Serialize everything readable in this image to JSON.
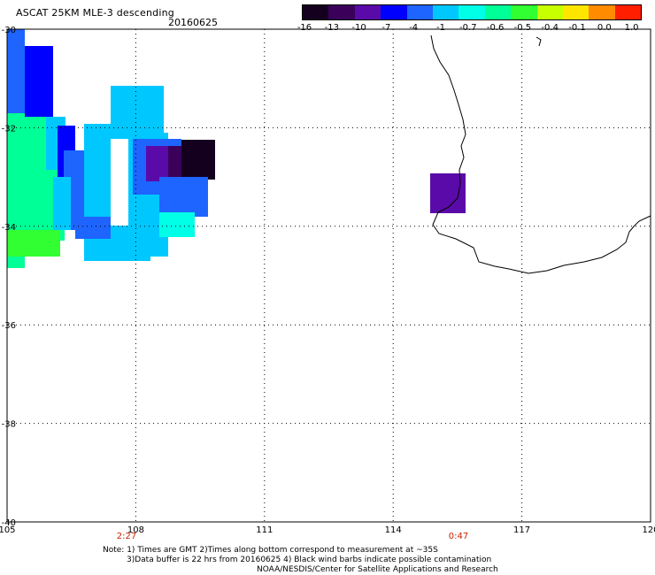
{
  "title": "ASCAT 25KM MLE-3 descending",
  "date": "20160625",
  "colorbar": {
    "labels": [
      "-16",
      "-13",
      "-10",
      "-7",
      "-4",
      "-1",
      "-0.7",
      "-0.6",
      "-0.5",
      "-0.4",
      "-0.1",
      "0.0",
      "1.0"
    ],
    "colors": [
      "#14001e",
      "#3a005a",
      "#5a0aa8",
      "#0000ff",
      "#1e64ff",
      "#00c8ff",
      "#00ffe6",
      "#00ff96",
      "#32ff32",
      "#c8ff00",
      "#ffe600",
      "#ff8c00",
      "#ff1e00"
    ]
  },
  "map": {
    "lon_ticks": [
      "105",
      "108",
      "111",
      "114",
      "117",
      "120"
    ],
    "lat_ticks": [
      "-30",
      "-32",
      "-34",
      "-36",
      "-38",
      "-40"
    ],
    "times": [
      "2:27",
      "0:47"
    ],
    "time_color": "#cc2200"
  },
  "notes": {
    "line1": "Note: 1) Times are GMT 2)Times along bottom correspond to measurement at ~35S",
    "line2": "3)Data buffer is 22 hrs from 20160625 4) Black wind barbs indicate possible contamination",
    "credit": "NOAA/NESDIS/Center for Satellite Applications and Research"
  }
}
